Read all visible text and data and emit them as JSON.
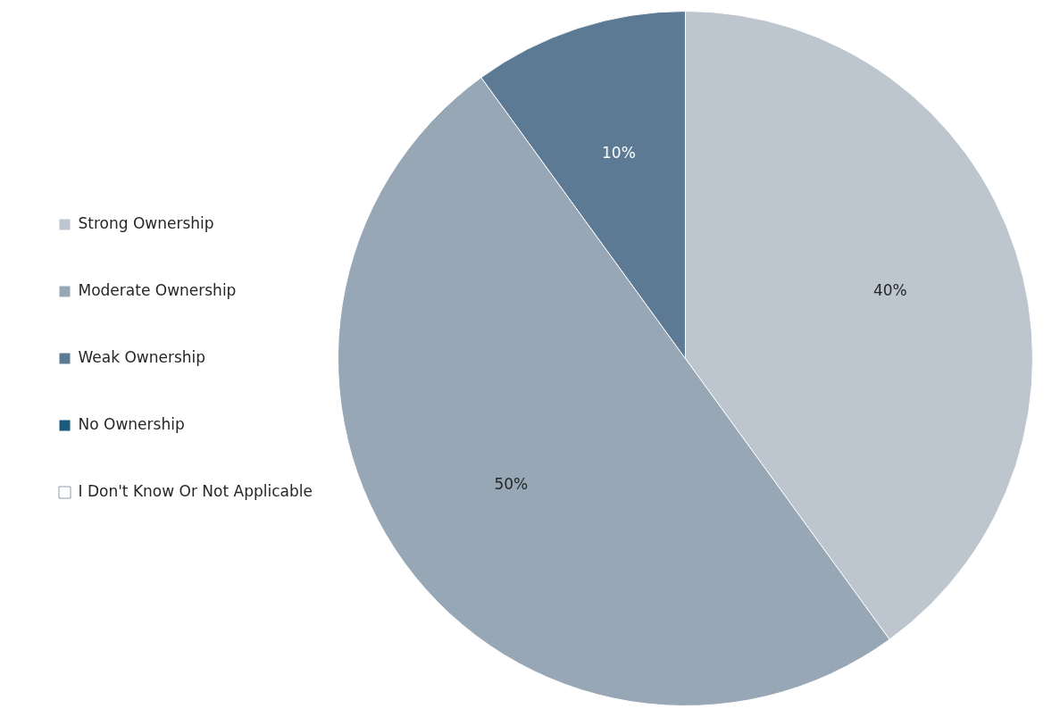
{
  "chart_data": {
    "type": "pie",
    "categories": [
      "Strong Ownership",
      "Moderate Ownership",
      "Weak Ownership",
      "No Ownership",
      "I Don't Know Or Not Applicable"
    ],
    "values": [
      40,
      50,
      10,
      0,
      0
    ],
    "colors": [
      "#bdc5cf",
      "#97a7b6",
      "#5c7a94",
      "#1a5a7a",
      "#ffffff"
    ],
    "value_labels": [
      "40%",
      "50%",
      "10%",
      null,
      null
    ],
    "legend": "left"
  }
}
